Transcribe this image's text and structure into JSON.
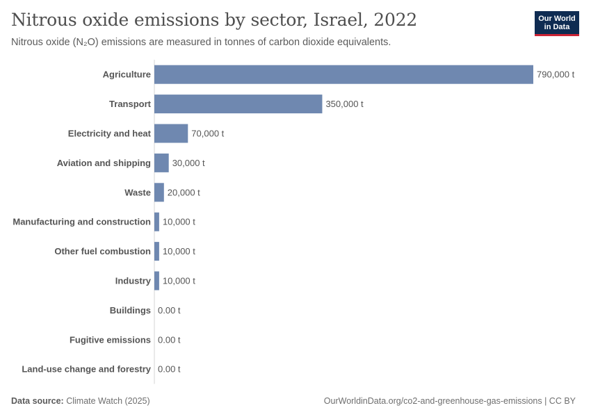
{
  "header": {
    "title": "Nitrous oxide emissions by sector, Israel, 2022",
    "subtitle": "Nitrous oxide (N₂O) emissions are measured in tonnes of carbon dioxide equivalents."
  },
  "logo": {
    "line1": "Our World",
    "line2": "in Data"
  },
  "footer": {
    "source_label": "Data source:",
    "source_value": "Climate Watch (2025)",
    "right": "OurWorldinData.org/co2-and-greenhouse-gas-emissions | CC BY"
  },
  "colors": {
    "bar": "#6f88b0",
    "axis": "#d6d6d6"
  },
  "chart_data": {
    "type": "bar",
    "orientation": "horizontal",
    "title": "Nitrous oxide emissions by sector, Israel, 2022",
    "unit": "t",
    "categories": [
      "Agriculture",
      "Transport",
      "Electricity and heat",
      "Aviation and shipping",
      "Waste",
      "Manufacturing and construction",
      "Other fuel combustion",
      "Industry",
      "Buildings",
      "Fugitive emissions",
      "Land-use change and forestry"
    ],
    "values": [
      790000,
      350000,
      70000,
      30000,
      20000,
      10000,
      10000,
      10000,
      0,
      0,
      0
    ],
    "value_labels": [
      "790,000 t",
      "350,000 t",
      "70,000 t",
      "30,000 t",
      "20,000 t",
      "10,000 t",
      "10,000 t",
      "10,000 t",
      "0.00 t",
      "0.00 t",
      "0.00 t"
    ],
    "xlim": [
      0,
      790000
    ]
  }
}
